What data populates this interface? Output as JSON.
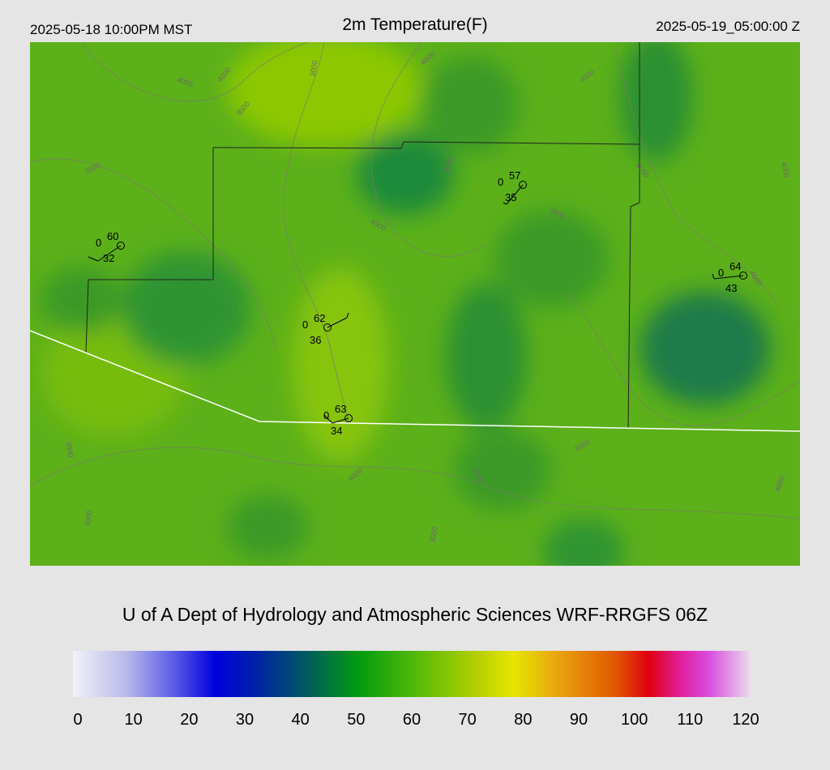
{
  "header": {
    "left": "2025-05-18 10:00PM MST",
    "title": "2m Temperature(F)",
    "right": "2025-05-19_05:00:00 Z"
  },
  "stations": [
    {
      "temp": 60,
      "cloud": 0,
      "dewpoint": 32
    },
    {
      "temp": 57,
      "cloud": 0,
      "dewpoint": 35
    },
    {
      "temp": 64,
      "cloud": 0,
      "dewpoint": 43
    },
    {
      "temp": 62,
      "cloud": 0,
      "dewpoint": 36
    },
    {
      "temp": 63,
      "cloud": 0,
      "dewpoint": 34
    }
  ],
  "contour_labels": [
    "4000",
    "4000",
    "3500",
    "3000",
    "3500",
    "4000",
    "4500",
    "4500",
    "5000",
    "4500",
    "4000",
    "5000",
    "4500",
    "3500",
    "3000",
    "4000",
    "5000",
    "3000",
    "4500",
    "4000"
  ],
  "credit": "U of A Dept of Hydrology and Atmospheric Sciences WRF-RRGFS 06Z",
  "colorbar": {
    "lim": [
      0,
      120
    ],
    "ticks": [
      0,
      10,
      20,
      30,
      40,
      50,
      60,
      70,
      80,
      90,
      100,
      110,
      120
    ]
  }
}
